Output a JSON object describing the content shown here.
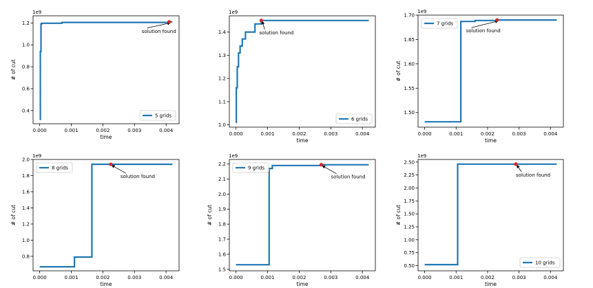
{
  "chart_data": [
    {
      "type": "line",
      "exponent_label": "1e9",
      "xlabel": "time",
      "ylabel": "# of cut",
      "legend": "5 grids",
      "legend_position": "bottom-right",
      "annotation": "solution found",
      "xlim": [
        -0.00021,
        0.00441
      ],
      "ylim": [
        0.28,
        1.265
      ],
      "x_ticks": [
        0.0,
        0.001,
        0.002,
        0.003,
        0.004
      ],
      "x_tick_labels": [
        "0.000",
        "0.001",
        "0.002",
        "0.003",
        "0.004"
      ],
      "y_ticks": [
        0.4,
        0.6,
        0.8,
        1.0,
        1.2
      ],
      "y_tick_labels": [
        "0.4",
        "0.6",
        "0.8",
        "1.0",
        "1.2"
      ],
      "series": [
        {
          "x": [
            0,
            2e-05,
            2e-05,
            4e-05,
            4e-05,
            6e-05,
            6e-05,
            0.0007,
            0.0007,
            0.0041,
            0.0041,
            0.0042
          ],
          "y": [
            0.32,
            0.32,
            0.94,
            0.94,
            1.19,
            1.19,
            1.197,
            1.197,
            1.205,
            1.205,
            1.21,
            1.21
          ]
        }
      ],
      "solution_point": {
        "x": 0.0041,
        "y": 1.21
      },
      "color": "#1f77b4",
      "marker_color": "#d62728"
    },
    {
      "type": "line",
      "exponent_label": "1e9",
      "xlabel": "time",
      "ylabel": "",
      "legend": "6 grids",
      "legend_position": "bottom-right",
      "annotation": "solution found",
      "xlim": [
        -0.00021,
        0.00441
      ],
      "ylim": [
        0.99,
        1.47
      ],
      "x_ticks": [
        0.0,
        0.001,
        0.002,
        0.003,
        0.004
      ],
      "x_tick_labels": [
        "0.000",
        "0.001",
        "0.002",
        "0.003",
        "0.004"
      ],
      "y_ticks": [
        1.0,
        1.1,
        1.2,
        1.3,
        1.4
      ],
      "y_tick_labels": [
        "1.0",
        "1.1",
        "1.2",
        "1.3",
        "1.4"
      ],
      "series": [
        {
          "x": [
            0,
            1e-05,
            1e-05,
            4e-05,
            4e-05,
            8e-05,
            8e-05,
            0.00013,
            0.00013,
            0.0002,
            0.0002,
            0.0003,
            0.0003,
            0.0006,
            0.0006,
            0.0008,
            0.0008,
            0.0042
          ],
          "y": [
            1.01,
            1.01,
            1.16,
            1.16,
            1.25,
            1.25,
            1.31,
            1.31,
            1.34,
            1.34,
            1.37,
            1.37,
            1.4,
            1.4,
            1.435,
            1.435,
            1.45,
            1.45
          ]
        }
      ],
      "solution_point": {
        "x": 0.0008,
        "y": 1.45
      },
      "color": "#1f77b4",
      "marker_color": "#d62728"
    },
    {
      "type": "line",
      "exponent_label": "1e9",
      "xlabel": "time",
      "ylabel": "# of cut",
      "legend": "7 grids",
      "legend_position": "top-left",
      "annotation": "solution found",
      "xlim": [
        -0.00021,
        0.00441
      ],
      "ylim": [
        1.47,
        1.7
      ],
      "x_ticks": [
        0.0,
        0.001,
        0.002,
        0.003,
        0.004
      ],
      "x_tick_labels": [
        "0.000",
        "0.001",
        "0.002",
        "0.003",
        "0.004"
      ],
      "y_ticks": [
        1.5,
        1.55,
        1.6,
        1.65,
        1.7
      ],
      "y_tick_labels": [
        "1.50",
        "1.55",
        "1.60",
        "1.65",
        "1.70"
      ],
      "series": [
        {
          "x": [
            0,
            0.00115,
            0.00115,
            0.0016,
            0.0016,
            0.0023,
            0.0023,
            0.0042
          ],
          "y": [
            1.481,
            1.481,
            1.687,
            1.687,
            1.689,
            1.689,
            1.69,
            1.69
          ]
        }
      ],
      "solution_point": {
        "x": 0.0023,
        "y": 1.69
      },
      "color": "#1f77b4",
      "marker_color": "#d62728"
    },
    {
      "type": "line",
      "exponent_label": "1e9",
      "xlabel": "time",
      "ylabel": "# of cut",
      "legend": "8 grids",
      "legend_position": "top-left",
      "annotation": "solution found",
      "xlim": [
        -0.00021,
        0.00441
      ],
      "ylim": [
        0.62,
        2.0
      ],
      "x_ticks": [
        0.0,
        0.001,
        0.002,
        0.003,
        0.004
      ],
      "x_tick_labels": [
        "0.000",
        "0.001",
        "0.002",
        "0.003",
        "0.004"
      ],
      "y_ticks": [
        0.8,
        1.0,
        1.2,
        1.4,
        1.6,
        1.8,
        2.0
      ],
      "y_tick_labels": [
        "0.8",
        "1.0",
        "1.2",
        "1.4",
        "1.6",
        "1.8",
        "2.0"
      ],
      "series": [
        {
          "x": [
            0,
            0.0011,
            0.0011,
            0.00165,
            0.00165,
            0.0042
          ],
          "y": [
            0.67,
            0.67,
            0.79,
            0.79,
            1.94,
            1.94
          ]
        }
      ],
      "solution_point": {
        "x": 0.00225,
        "y": 1.94
      },
      "color": "#1f77b4",
      "marker_color": "#d62728"
    },
    {
      "type": "line",
      "exponent_label": "1e9",
      "xlabel": "time",
      "ylabel": "# of cut",
      "legend": "9 grids",
      "legend_position": "top-left",
      "annotation": "solution found",
      "xlim": [
        -0.00021,
        0.00441
      ],
      "ylim": [
        1.49,
        2.23
      ],
      "x_ticks": [
        0.0,
        0.001,
        0.002,
        0.003,
        0.004
      ],
      "x_tick_labels": [
        "0.000",
        "0.001",
        "0.002",
        "0.003",
        "0.004"
      ],
      "y_ticks": [
        1.5,
        1.6,
        1.7,
        1.8,
        1.9,
        2.0,
        2.1,
        2.2
      ],
      "y_tick_labels": [
        "1.5",
        "1.6",
        "1.7",
        "1.8",
        "1.9",
        "2.0",
        "2.1",
        "2.2"
      ],
      "series": [
        {
          "x": [
            0,
            0.00105,
            0.00105,
            0.00115,
            0.00115,
            0.0027,
            0.0027,
            0.0042
          ],
          "y": [
            1.53,
            1.53,
            2.17,
            2.17,
            2.19,
            2.19,
            2.195,
            2.195
          ]
        }
      ],
      "solution_point": {
        "x": 0.0027,
        "y": 2.195
      },
      "color": "#1f77b4",
      "marker_color": "#d62728"
    },
    {
      "type": "line",
      "exponent_label": "1e9",
      "xlabel": "time",
      "ylabel": "# of cut",
      "legend": "10 grids",
      "legend_position": "bottom-right",
      "annotation": "solution found",
      "xlim": [
        -0.00021,
        0.00441
      ],
      "ylim": [
        0.4,
        2.55
      ],
      "x_ticks": [
        0.0,
        0.001,
        0.002,
        0.003,
        0.004
      ],
      "x_tick_labels": [
        "0.000",
        "0.001",
        "0.002",
        "0.003",
        "0.004"
      ],
      "y_ticks": [
        0.5,
        0.75,
        1.0,
        1.25,
        1.5,
        1.75,
        2.0,
        2.25,
        2.5
      ],
      "y_tick_labels": [
        "0.50",
        "0.75",
        "1.00",
        "1.25",
        "1.50",
        "1.75",
        "2.00",
        "2.25",
        "2.50"
      ],
      "series": [
        {
          "x": [
            0,
            0.00105,
            0.00105,
            0.0042
          ],
          "y": [
            0.52,
            0.52,
            2.46,
            2.46
          ]
        }
      ],
      "solution_point": {
        "x": 0.0029,
        "y": 2.46
      },
      "color": "#1f77b4",
      "marker_color": "#d62728"
    }
  ]
}
